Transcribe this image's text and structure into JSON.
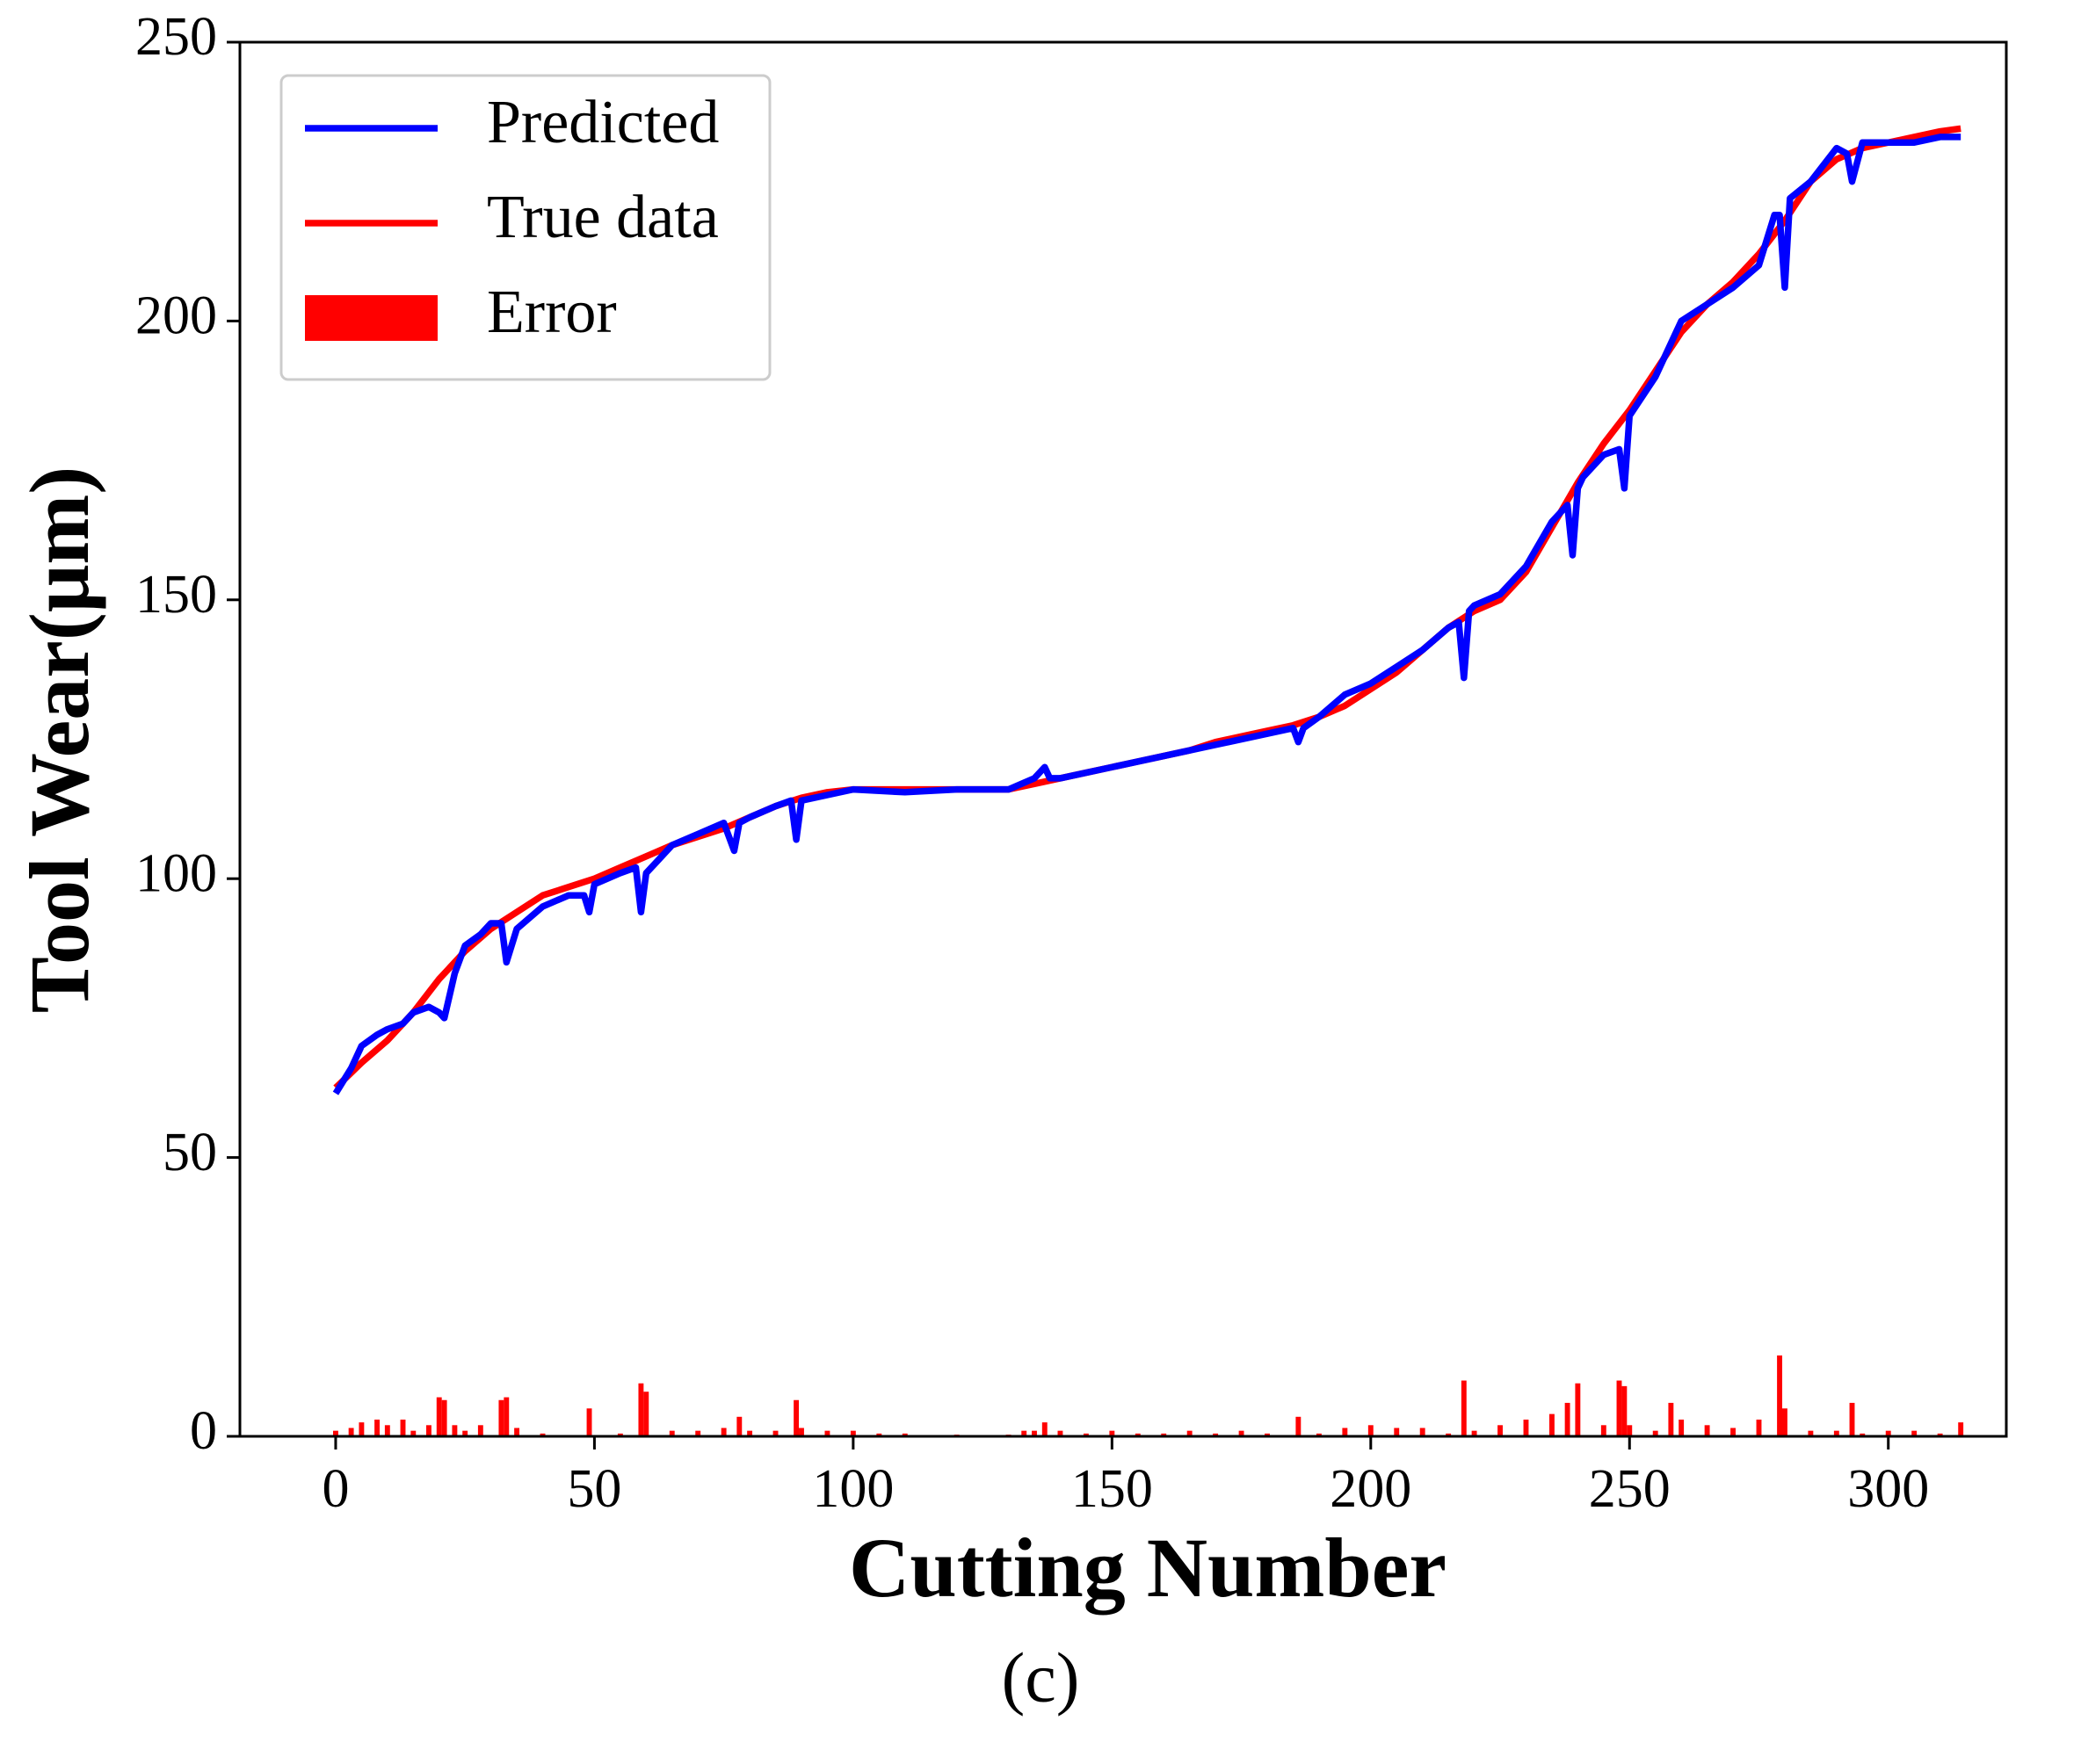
{
  "chart_data": {
    "type": "line",
    "xlabel": "Cutting Number",
    "ylabel": "Tool Wear(μm)",
    "caption": "(c)",
    "xlim": [
      -18.5,
      322.8
    ],
    "ylim": [
      0,
      250
    ],
    "xticks": [
      0,
      50,
      100,
      150,
      200,
      250,
      300
    ],
    "yticks": [
      0,
      50,
      100,
      150,
      200,
      250
    ],
    "legend": "upper left",
    "series": [
      {
        "name": "Predicted",
        "color": "#0000ff",
        "x": [
          0,
          3,
          5,
          8,
          10,
          13,
          15,
          18,
          20,
          21,
          23,
          25,
          28,
          30,
          32,
          33,
          35,
          40,
          45,
          48,
          49,
          50,
          55,
          58,
          59,
          60,
          62,
          65,
          70,
          75,
          77,
          78,
          80,
          85,
          88,
          89,
          90,
          95,
          100,
          110,
          120,
          130,
          135,
          137,
          138,
          140,
          150,
          160,
          170,
          180,
          185,
          186,
          187,
          190,
          195,
          200,
          205,
          210,
          215,
          217,
          218,
          219,
          220,
          225,
          230,
          235,
          238,
          239,
          240,
          241,
          245,
          248,
          249,
          250,
          255,
          260,
          265,
          270,
          275,
          278,
          279,
          280,
          281,
          285,
          290,
          292,
          293,
          295,
          300,
          305,
          310,
          314
        ],
        "values": [
          61.5,
          66,
          70,
          72,
          73,
          74,
          76,
          77,
          76,
          75,
          83,
          88,
          90,
          92,
          92,
          85,
          91,
          95,
          97,
          97,
          94,
          99,
          101,
          102,
          94,
          101,
          103,
          106,
          108,
          110,
          105,
          110,
          111,
          113,
          114,
          107,
          114,
          115,
          116,
          115.5,
          116,
          116,
          118,
          120,
          118,
          118,
          120,
          122,
          124,
          126,
          127,
          124.5,
          127,
          129,
          133,
          135,
          138,
          141,
          145,
          146,
          136,
          148,
          149,
          151,
          156,
          164,
          167,
          158,
          170,
          172,
          176,
          177,
          170,
          183,
          190,
          200,
          203,
          206,
          210,
          219,
          219,
          206,
          222,
          225,
          231,
          230,
          225,
          232,
          232,
          232,
          233,
          233
        ]
      },
      {
        "name": "True data",
        "color": "#ff0000",
        "x": [
          0,
          5,
          10,
          15,
          20,
          25,
          30,
          35,
          40,
          45,
          50,
          55,
          60,
          65,
          70,
          75,
          80,
          85,
          90,
          95,
          100,
          105,
          110,
          115,
          120,
          125,
          130,
          135,
          140,
          145,
          150,
          155,
          160,
          165,
          170,
          175,
          180,
          185,
          190,
          195,
          200,
          205,
          210,
          215,
          220,
          225,
          230,
          235,
          240,
          245,
          250,
          255,
          260,
          265,
          270,
          275,
          280,
          285,
          290,
          295,
          300,
          305,
          310,
          314
        ],
        "values": [
          62.5,
          67,
          71,
          76,
          82,
          87,
          91,
          94,
          97,
          98.5,
          100,
          102,
          104,
          106,
          107.5,
          109,
          111,
          113,
          114.5,
          115.5,
          116,
          116,
          116,
          116,
          116,
          116,
          116,
          117,
          118,
          119,
          120,
          121,
          122,
          123,
          124.5,
          125.5,
          126.5,
          127.5,
          129,
          131,
          134,
          137,
          141,
          145,
          148,
          150,
          155,
          163,
          171,
          178,
          184,
          191,
          198,
          203,
          207,
          212,
          218,
          225,
          229,
          231,
          232,
          233,
          234,
          234.5
        ]
      }
    ],
    "error": {
      "name": "Error",
      "color": "#ff0000",
      "x": [
        0,
        3,
        5,
        8,
        10,
        13,
        15,
        18,
        20,
        21,
        23,
        25,
        28,
        32,
        33,
        35,
        40,
        49,
        55,
        59,
        60,
        65,
        70,
        75,
        78,
        80,
        85,
        89,
        90,
        95,
        100,
        105,
        110,
        120,
        130,
        133,
        135,
        137,
        140,
        145,
        150,
        155,
        160,
        165,
        170,
        175,
        180,
        186,
        190,
        195,
        200,
        205,
        210,
        215,
        218,
        220,
        225,
        230,
        235,
        238,
        240,
        245,
        248,
        249,
        250,
        255,
        258,
        260,
        265,
        270,
        275,
        279,
        280,
        285,
        290,
        293,
        295,
        300,
        305,
        310,
        314
      ],
      "values": [
        1,
        1.5,
        2.5,
        3,
        2,
        3,
        1,
        2,
        7,
        6.5,
        2,
        1,
        2,
        6.5,
        7,
        1.5,
        0.5,
        5,
        0.5,
        9.5,
        8,
        1,
        1,
        1.5,
        3.5,
        1,
        1,
        6.5,
        1.5,
        1,
        1,
        0.5,
        0.5,
        0.3,
        0.3,
        1,
        1,
        2.5,
        1,
        0.5,
        1,
        0.5,
        0.5,
        1,
        0.5,
        1,
        0.5,
        3.5,
        0.5,
        1.5,
        2,
        1.5,
        1.5,
        0.5,
        10,
        1,
        2,
        3,
        4,
        6,
        9.5,
        2,
        10,
        9,
        2,
        1,
        6,
        3,
        2,
        1.5,
        3,
        14.5,
        5,
        1,
        1,
        6,
        0.5,
        1,
        1,
        0.5,
        2.5
      ]
    }
  }
}
